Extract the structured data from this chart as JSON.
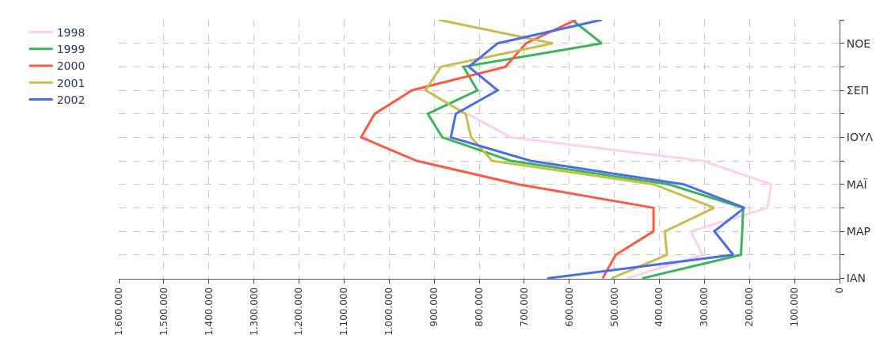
{
  "chart_data": {
    "type": "line",
    "orientation": "horizontal",
    "categories": [
      null,
      "ΝΟΕ",
      null,
      "ΣΕΠ",
      null,
      "ΙΟΥΛ",
      null,
      "ΜΑΪ",
      null,
      "ΜΑΡ",
      null,
      "ΙΑΝ"
    ],
    "series": [
      {
        "name": "1998",
        "color": "#ffd0f0",
        "values": [
          null,
          null,
          null,
          null,
          826000,
          730000,
          304000,
          152000,
          160000,
          330000,
          304000,
          472000
        ]
      },
      {
        "name": "1999",
        "color": "#3cb45a",
        "values": [
          594000,
          528000,
          835000,
          804000,
          914000,
          882000,
          730000,
          379000,
          214000,
          216000,
          219000,
          438000
        ]
      },
      {
        "name": "2000",
        "color": "#ff5a46",
        "values": [
          585000,
          696000,
          742000,
          949000,
          1032000,
          1062000,
          939000,
          713000,
          413000,
          413000,
          497000,
          526000
        ]
      },
      {
        "name": "2001",
        "color": "#c8be50",
        "values": [
          890000,
          637000,
          885000,
          919000,
          830000,
          818000,
          771000,
          413000,
          278000,
          388000,
          383000,
          506000
        ]
      },
      {
        "name": "2002",
        "color": "#4a6ee6",
        "values": [
          528000,
          759000,
          823000,
          759000,
          852000,
          863000,
          686000,
          346000,
          211000,
          278000,
          236000,
          649000
        ]
      }
    ],
    "xlim": [
      1600000,
      0
    ],
    "xticks": [
      {
        "value": 1600000,
        "label": "1.600.000"
      },
      {
        "value": 1500000,
        "label": "1.500.000"
      },
      {
        "value": 1400000,
        "label": "1.400.000"
      },
      {
        "value": 1300000,
        "label": "1.300.000"
      },
      {
        "value": 1200000,
        "label": "1.200.000"
      },
      {
        "value": 1100000,
        "label": "1.100.000"
      },
      {
        "value": 1000000,
        "label": "1.000.000"
      },
      {
        "value": 900000,
        "label": "900.000"
      },
      {
        "value": 800000,
        "label": "800.000"
      },
      {
        "value": 700000,
        "label": "700.000"
      },
      {
        "value": 600000,
        "label": "600.000"
      },
      {
        "value": 500000,
        "label": "500.000"
      },
      {
        "value": 400000,
        "label": "400.000"
      },
      {
        "value": 300000,
        "label": "300.000"
      },
      {
        "value": 200000,
        "label": "200.000"
      },
      {
        "value": 100000,
        "label": "100.000"
      },
      0
    ],
    "grid": true,
    "legend": "left",
    "line_style": "solid",
    "marker": "none"
  }
}
